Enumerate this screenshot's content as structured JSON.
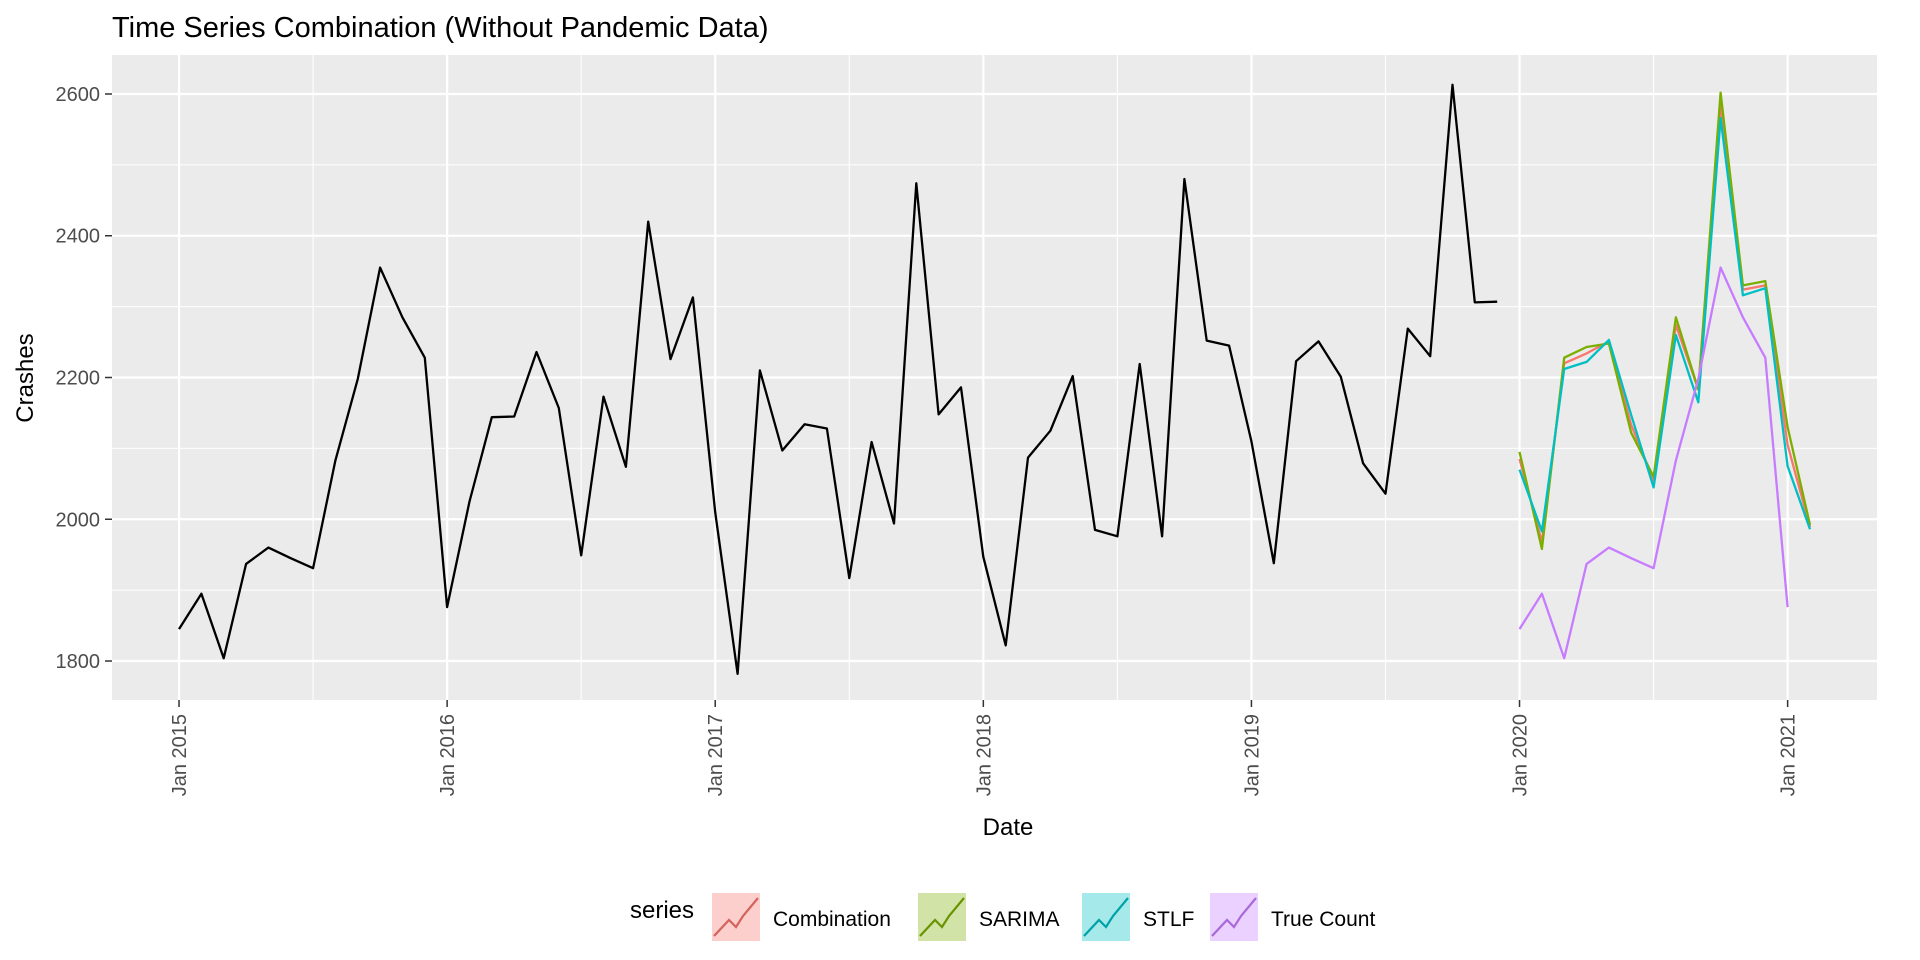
{
  "chart_data": {
    "type": "line",
    "title": "Time Series Combination (Without Pandemic Data)",
    "xlabel": "Date",
    "ylabel": "Crashes",
    "x_ticks": [
      "Jan 2015",
      "Jan 2016",
      "Jan 2017",
      "Jan 2018",
      "Jan 2019",
      "Jan 2020",
      "Jan 2021"
    ],
    "y_ticks": [
      1800,
      2000,
      2200,
      2400,
      2600
    ],
    "xlim": [
      "2014-10",
      "2021-05"
    ],
    "ylim": [
      1745,
      2655
    ],
    "grid": true,
    "legend_position": "bottom",
    "legend_title": "series",
    "history": {
      "color": "#000000",
      "start": "2015-01",
      "values": [
        1845,
        1895,
        1804,
        1937,
        1960,
        1945,
        1931,
        2083,
        2198,
        2355,
        2285,
        2228,
        1876,
        2025,
        2144,
        2145,
        2236,
        2157,
        1949,
        2173,
        2074,
        2420,
        2226,
        2313,
        2010,
        1782,
        2210,
        2097,
        2134,
        2128,
        1917,
        2109,
        1994,
        2474,
        2148,
        2186,
        1947,
        1822,
        2087,
        2125,
        2202,
        1985,
        1976,
        2219,
        1976,
        2480,
        2252,
        2245,
        2110,
        1938,
        2223,
        2251,
        2201,
        2079,
        2036,
        2269,
        2230,
        2613,
        2306,
        2307
      ]
    },
    "forecast_start": "2020-01",
    "series": [
      {
        "name": "Combination",
        "color": "#F8766D",
        "values": [
          2085,
          1968,
          2220,
          2234,
          2251,
          2133,
          2055,
          2274,
          2183,
          2585,
          2324,
          2330,
          2105,
          1989
        ]
      },
      {
        "name": "SARIMA",
        "color": "#7CAE00",
        "values": [
          2095,
          1958,
          2228,
          2243,
          2248,
          2122,
          2060,
          2285,
          2183,
          2602,
          2330,
          2336,
          2130,
          1992
        ]
      },
      {
        "name": "STLF",
        "color": "#00BFC4",
        "values": [
          2070,
          1983,
          2212,
          2222,
          2253,
          2147,
          2045,
          2260,
          2165,
          2566,
          2316,
          2326,
          2075,
          1986
        ]
      },
      {
        "name": "True Count",
        "color": "#C77CFF",
        "values": [
          1845,
          1895,
          1804,
          1937,
          1960,
          1945,
          1931,
          2083,
          2198,
          2355,
          2285,
          2228,
          1876
        ]
      }
    ]
  }
}
